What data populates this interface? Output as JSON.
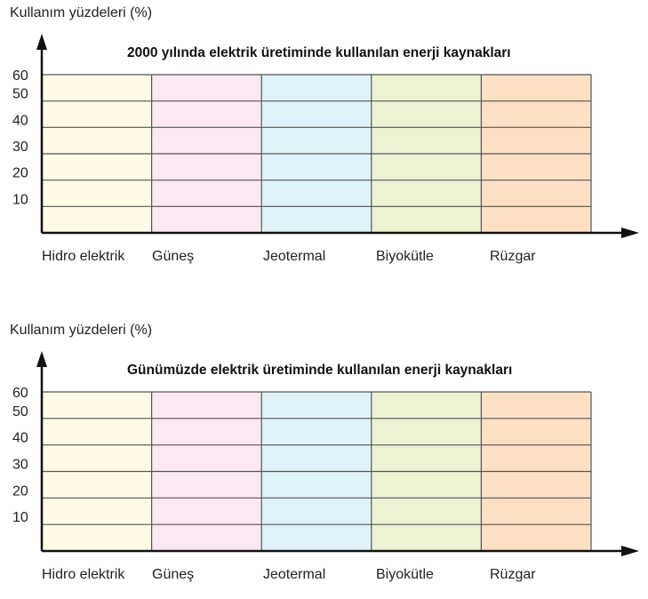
{
  "chart_data": [
    {
      "type": "bar",
      "title": "2000 yılında elektrik üretiminde kullanılan enerji kaynakları",
      "ylabel": "Kullanım yüzdeleri (%)",
      "xlabel": "",
      "categories": [
        "Hidro elektrik",
        "Güneş",
        "Jeotermal",
        "Biyokütle",
        "Rüzgar"
      ],
      "values": [
        null,
        null,
        null,
        null,
        null
      ],
      "yticks": [
        "10",
        "20",
        "30",
        "40",
        "50",
        "60"
      ],
      "ylim": [
        0,
        60
      ],
      "grid": true,
      "column_colors": [
        "#fffbe6",
        "#fce8f3",
        "#e1f3fa",
        "#ebf3d3",
        "#fde0c4"
      ]
    },
    {
      "type": "bar",
      "title": "Günümüzde elektrik üretiminde kullanılan enerji kaynakları",
      "ylabel": "Kullanım yüzdeleri (%)",
      "xlabel": "",
      "categories": [
        "Hidro elektrik",
        "Güneş",
        "Jeotermal",
        "Biyokütle",
        "Rüzgar"
      ],
      "values": [
        null,
        null,
        null,
        null,
        null
      ],
      "yticks": [
        "10",
        "20",
        "30",
        "40",
        "50",
        "60"
      ],
      "ylim": [
        0,
        60
      ],
      "grid": true,
      "column_colors": [
        "#fffbe6",
        "#fce8f3",
        "#e1f3fa",
        "#ebf3d3",
        "#fde0c4"
      ]
    }
  ],
  "colors": {
    "axis": "#111111",
    "gridline": "#555555"
  }
}
